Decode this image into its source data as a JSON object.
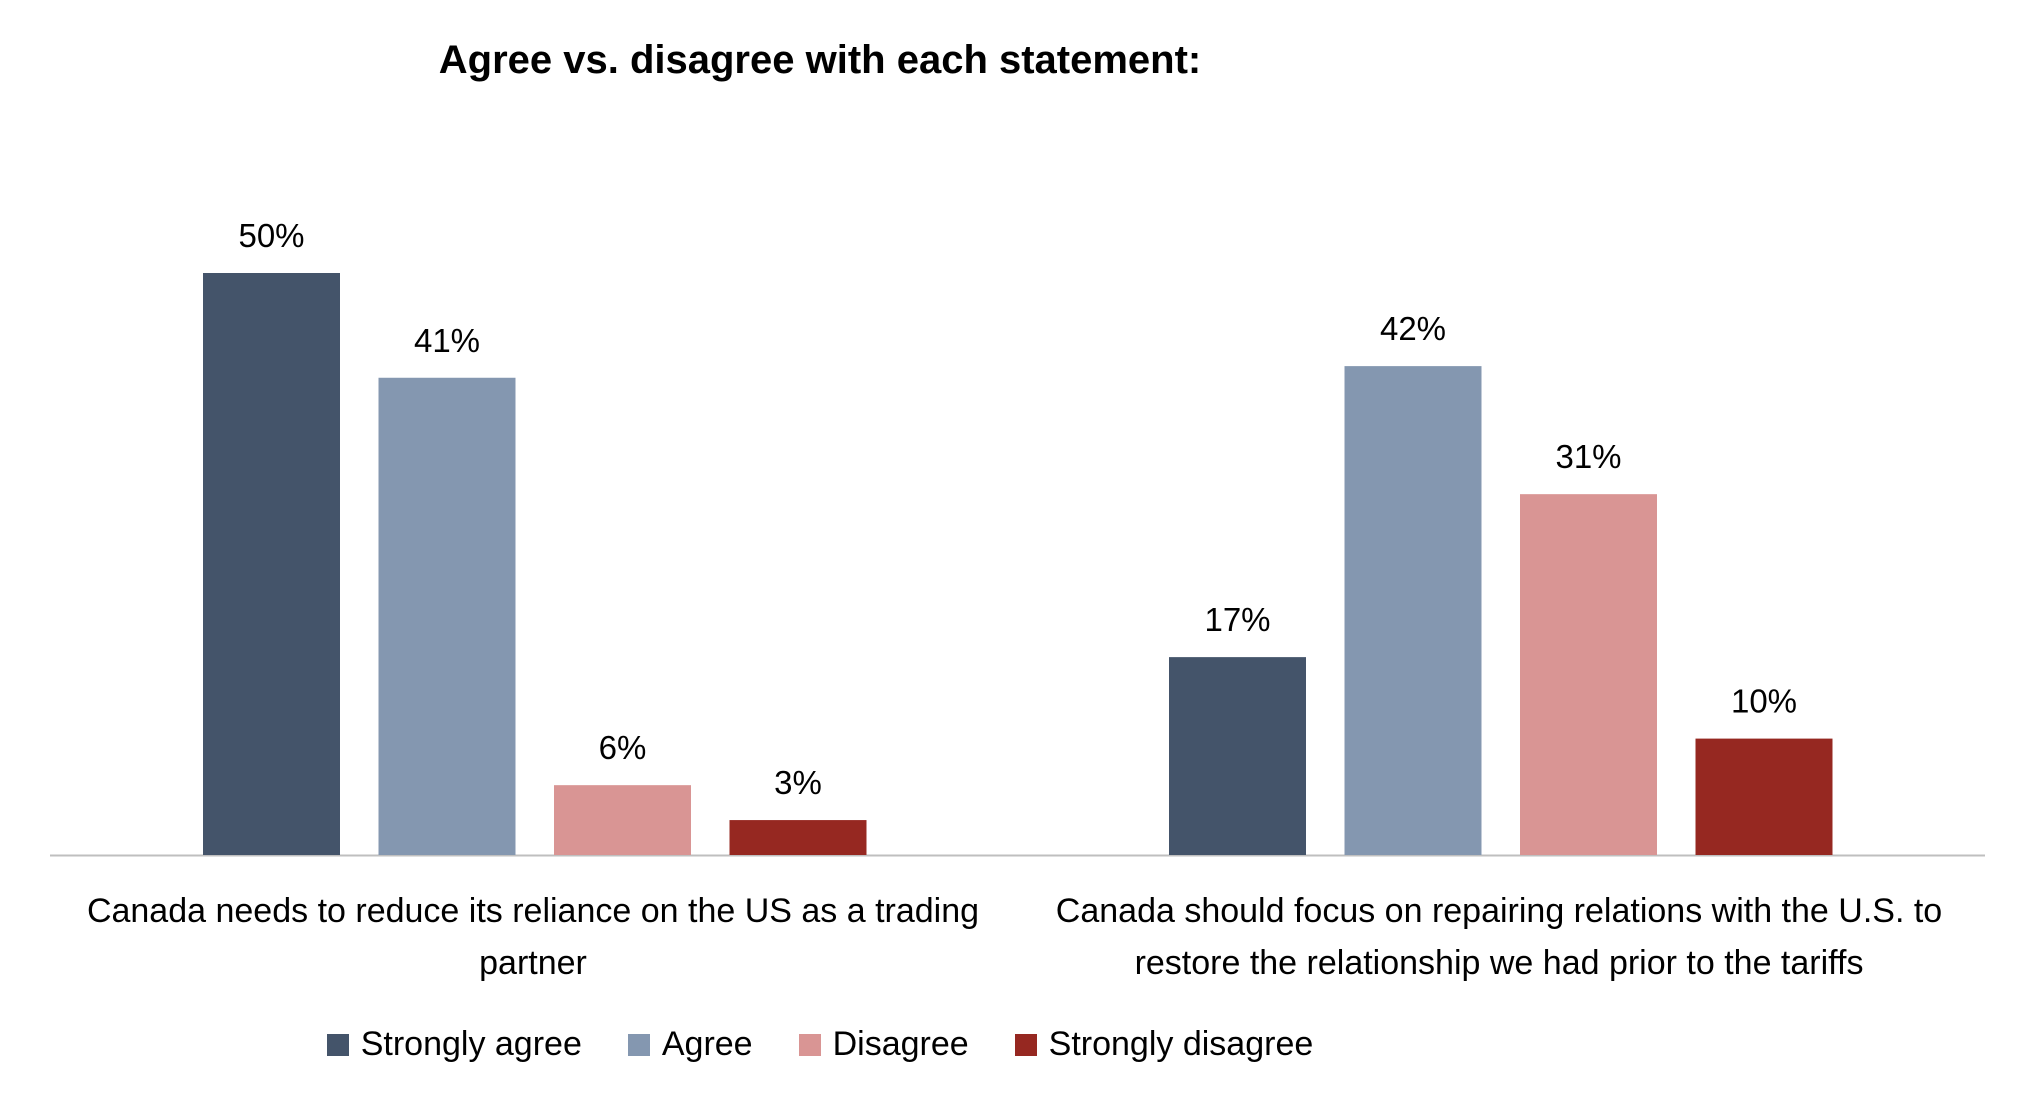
{
  "chart_data": {
    "type": "bar",
    "title": "Agree vs. disagree with each statement:",
    "categories": [
      "Canada needs to reduce its reliance on the US as a trading partner",
      "Canada should focus on repairing relations with the U.S. to restore the relationship we had prior to the tariffs"
    ],
    "series": [
      {
        "name": "Strongly agree",
        "color": "#44546A",
        "values": [
          50,
          17
        ]
      },
      {
        "name": "Agree",
        "color": "#8497B0",
        "values": [
          41,
          42
        ]
      },
      {
        "name": "Disagree",
        "color": "#D99594",
        "values": [
          6,
          31
        ]
      },
      {
        "name": "Strongly disagree",
        "color": "#962821",
        "values": [
          3,
          10
        ]
      }
    ],
    "value_suffix": "%",
    "ylim": [
      0,
      50
    ],
    "grid": false,
    "legend_position": "bottom",
    "data_labels": true
  }
}
